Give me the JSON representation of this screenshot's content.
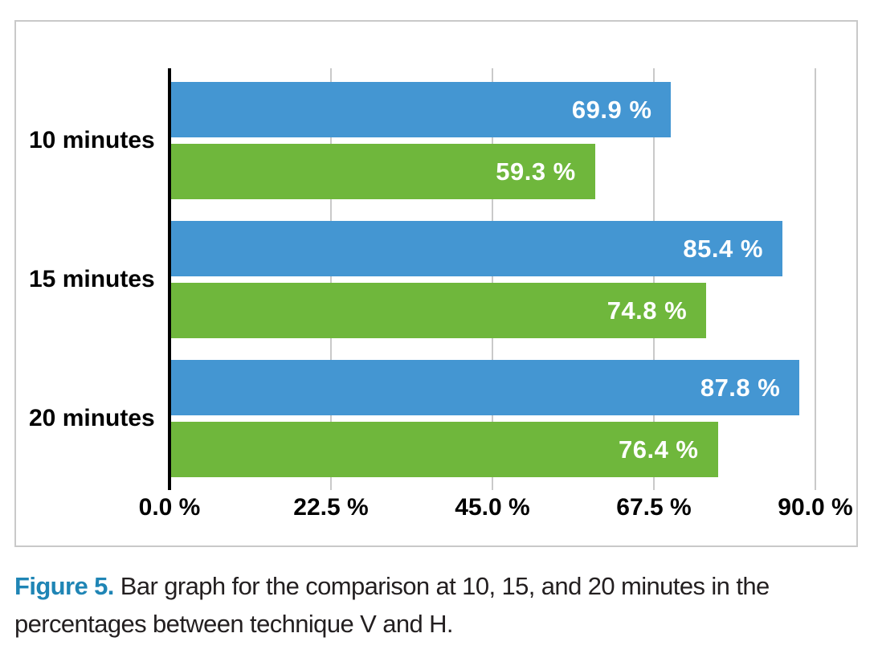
{
  "chart_data": {
    "type": "bar",
    "orientation": "horizontal",
    "title": "",
    "categories": [
      "10 minutes",
      "15 minutes",
      "20 minutes"
    ],
    "series": [
      {
        "name": "Technique V",
        "color": "#4496d2",
        "values": [
          69.9,
          85.4,
          87.8
        ],
        "labels": [
          "69.9 %",
          "85.4 %",
          "87.8 %"
        ]
      },
      {
        "name": "Technique H",
        "color": "#6fb73c",
        "values": [
          59.3,
          74.8,
          76.4
        ],
        "labels": [
          "59.3 %",
          "74.8 %",
          "76.4 %"
        ]
      }
    ],
    "xlabel": "",
    "ylabel": "",
    "xlim": [
      0,
      90
    ],
    "x_ticks": [
      {
        "value": 0,
        "label": "0.0 %"
      },
      {
        "value": 22.5,
        "label": "22.5 %"
      },
      {
        "value": 45,
        "label": "45.0 %"
      },
      {
        "value": 67.5,
        "label": "67.5 %"
      },
      {
        "value": 90,
        "label": "90.0 %"
      }
    ],
    "grid": true,
    "legend_position": "none"
  },
  "caption": {
    "label": "Figure 5.",
    "text": " Bar graph for the comparison at 10, 15, and 20 minutes in the percentages between technique V and H."
  },
  "colors": {
    "bar_blue": "#4496d2",
    "bar_green": "#6fb73c",
    "axis": "#000000",
    "gridline": "#c9c9c9",
    "frame_border": "#c9c9c9",
    "caption_label": "#1f85b5",
    "caption_text": "#231f20",
    "bar_label_text": "#ffffff"
  }
}
